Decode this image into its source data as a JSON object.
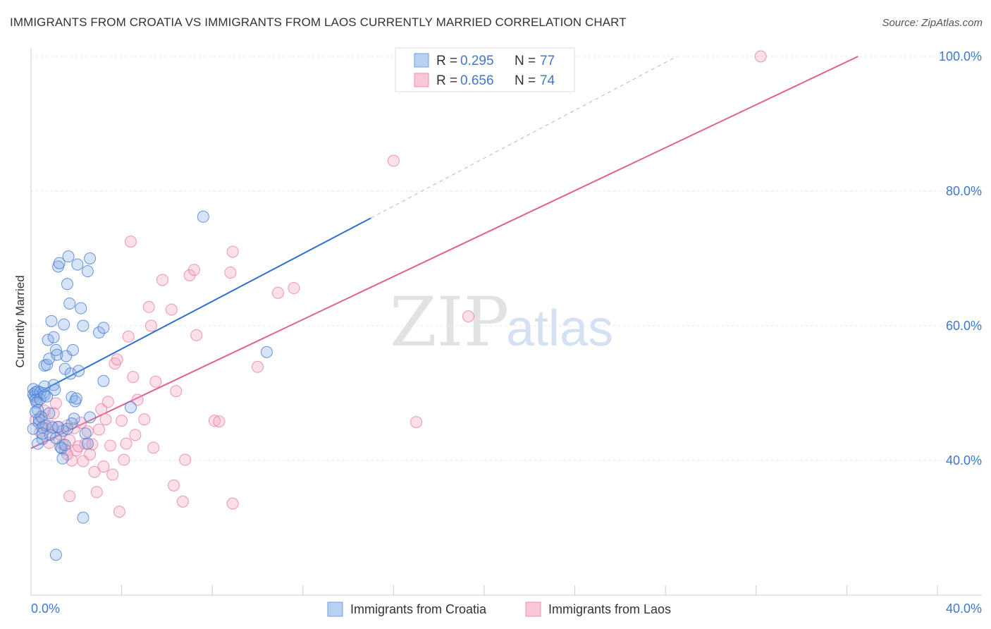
{
  "title": "IMMIGRANTS FROM CROATIA VS IMMIGRANTS FROM LAOS CURRENTLY MARRIED CORRELATION CHART",
  "source": "Source: ZipAtlas.com",
  "watermark": {
    "zip": "ZIP",
    "atlas": "atlas"
  },
  "colors": {
    "croatia": "#5a8fdc",
    "croatia_line": "#2d6fcc",
    "laos": "#f08cab",
    "laos_line": "#e0608c",
    "tick_text": "#3f78cc"
  },
  "chart_data": {
    "type": "scatter",
    "title": "IMMIGRANTS FROM CROATIA VS IMMIGRANTS FROM LAOS CURRENTLY MARRIED CORRELATION CHART",
    "xlabel": "",
    "ylabel": "Currently Married",
    "xlim": [
      0,
      40
    ],
    "ylim": [
      22,
      102
    ],
    "x_tick_labels": [
      "0.0%",
      "40.0%"
    ],
    "y_ticks": [
      40,
      60,
      80,
      100
    ],
    "y_tick_labels": [
      "40.0%",
      "60.0%",
      "80.0%",
      "100.0%"
    ],
    "grid": true,
    "legend_position": "top-center",
    "legend": [
      {
        "series": "Immigrants from Croatia",
        "r_label": "R =",
        "r_value": "0.295",
        "n_label": "N =",
        "n_value": "77"
      },
      {
        "series": "Immigrants from Laos",
        "r_label": "R =",
        "r_value": "0.656",
        "n_label": "N =",
        "n_value": "74"
      }
    ],
    "series": [
      {
        "name": "Immigrants from Croatia",
        "trend": {
          "x": [
            0.0,
            15.0
          ],
          "y": [
            49.5,
            76.0
          ],
          "extended_to": [
            28.5,
            100.0
          ]
        },
        "points": [
          [
            0.1,
            50.6
          ],
          [
            0.1,
            49.8
          ],
          [
            0.15,
            49.5
          ],
          [
            0.2,
            50.1
          ],
          [
            0.2,
            49.0
          ],
          [
            0.25,
            48.6
          ],
          [
            0.3,
            50.3
          ],
          [
            0.3,
            47.5
          ],
          [
            0.35,
            46.1
          ],
          [
            0.35,
            45.6
          ],
          [
            0.4,
            50.1
          ],
          [
            0.4,
            49.1
          ],
          [
            0.45,
            46.5
          ],
          [
            0.5,
            44.9
          ],
          [
            0.5,
            43.2
          ],
          [
            0.55,
            50.0
          ],
          [
            0.6,
            49.7
          ],
          [
            0.6,
            54.1
          ],
          [
            0.65,
            45.2
          ],
          [
            0.7,
            54.2
          ],
          [
            0.75,
            57.9
          ],
          [
            0.8,
            55.1
          ],
          [
            0.85,
            43.8
          ],
          [
            0.9,
            60.7
          ],
          [
            0.95,
            44.9
          ],
          [
            1.0,
            51.2
          ],
          [
            1.0,
            58.3
          ],
          [
            1.05,
            50.5
          ],
          [
            1.1,
            56.4
          ],
          [
            1.15,
            55.7
          ],
          [
            1.2,
            68.8
          ],
          [
            1.25,
            69.3
          ],
          [
            1.3,
            42.0
          ],
          [
            1.35,
            41.8
          ],
          [
            1.4,
            44.4
          ],
          [
            1.45,
            60.2
          ],
          [
            1.5,
            53.6
          ],
          [
            1.55,
            55.5
          ],
          [
            1.6,
            66.2
          ],
          [
            1.65,
            70.3
          ],
          [
            1.7,
            63.3
          ],
          [
            1.75,
            52.9
          ],
          [
            1.8,
            49.4
          ],
          [
            1.85,
            56.4
          ],
          [
            1.9,
            46.2
          ],
          [
            1.95,
            48.8
          ],
          [
            2.0,
            49.2
          ],
          [
            2.05,
            69.1
          ],
          [
            2.1,
            53.3
          ],
          [
            2.2,
            62.6
          ],
          [
            2.3,
            60.0
          ],
          [
            2.4,
            44.0
          ],
          [
            2.5,
            42.5
          ],
          [
            2.6,
            46.4
          ],
          [
            0.2,
            47.2
          ],
          [
            0.5,
            44.0
          ],
          [
            0.6,
            51.0
          ],
          [
            0.7,
            49.5
          ],
          [
            0.8,
            47.0
          ],
          [
            1.1,
            43.3
          ],
          [
            1.2,
            45.0
          ],
          [
            1.4,
            40.3
          ],
          [
            1.5,
            42.3
          ],
          [
            1.6,
            44.7
          ],
          [
            1.8,
            45.5
          ],
          [
            2.3,
            31.5
          ],
          [
            1.1,
            26.0
          ],
          [
            2.5,
            68.1
          ],
          [
            2.6,
            70.0
          ],
          [
            3.0,
            59.0
          ],
          [
            3.2,
            59.7
          ],
          [
            3.2,
            51.8
          ],
          [
            4.4,
            47.9
          ],
          [
            7.6,
            76.2
          ],
          [
            10.4,
            56.1
          ],
          [
            0.3,
            42.5
          ],
          [
            0.1,
            44.7
          ]
        ]
      },
      {
        "name": "Immigrants from Laos",
        "trend": {
          "x": [
            0.0,
            36.5
          ],
          "y": [
            41.8,
            100.0
          ]
        },
        "points": [
          [
            0.3,
            48.8
          ],
          [
            0.5,
            46.3
          ],
          [
            0.6,
            47.4
          ],
          [
            0.7,
            44.7
          ],
          [
            0.8,
            42.6
          ],
          [
            0.9,
            45.1
          ],
          [
            1.0,
            47.0
          ],
          [
            1.2,
            44.9
          ],
          [
            1.3,
            43.8
          ],
          [
            1.4,
            42.4
          ],
          [
            1.5,
            41.6
          ],
          [
            1.6,
            45.2
          ],
          [
            1.7,
            43.0
          ],
          [
            1.8,
            40.0
          ],
          [
            1.9,
            44.8
          ],
          [
            2.0,
            41.5
          ],
          [
            2.1,
            42.1
          ],
          [
            2.2,
            45.6
          ],
          [
            2.3,
            39.9
          ],
          [
            2.4,
            42.5
          ],
          [
            2.5,
            44.3
          ],
          [
            2.6,
            40.9
          ],
          [
            2.7,
            42.4
          ],
          [
            2.8,
            38.3
          ],
          [
            2.9,
            35.3
          ],
          [
            3.0,
            44.6
          ],
          [
            3.1,
            47.6
          ],
          [
            3.2,
            39.1
          ],
          [
            3.3,
            46.1
          ],
          [
            3.4,
            48.7
          ],
          [
            3.5,
            42.2
          ],
          [
            3.6,
            37.9
          ],
          [
            3.7,
            54.4
          ],
          [
            3.8,
            55.0
          ],
          [
            3.9,
            32.4
          ],
          [
            4.0,
            45.9
          ],
          [
            4.1,
            40.1
          ],
          [
            4.2,
            42.5
          ],
          [
            4.3,
            58.4
          ],
          [
            4.4,
            72.5
          ],
          [
            4.5,
            52.4
          ],
          [
            4.6,
            43.8
          ],
          [
            4.7,
            49.0
          ],
          [
            5.0,
            46.1
          ],
          [
            5.2,
            62.8
          ],
          [
            5.3,
            60.0
          ],
          [
            5.4,
            41.9
          ],
          [
            5.5,
            51.7
          ],
          [
            5.8,
            66.8
          ],
          [
            6.2,
            62.4
          ],
          [
            6.3,
            36.3
          ],
          [
            6.4,
            50.3
          ],
          [
            6.7,
            33.9
          ],
          [
            6.8,
            40.1
          ],
          [
            7.0,
            67.5
          ],
          [
            7.2,
            68.3
          ],
          [
            7.3,
            58.6
          ],
          [
            8.1,
            45.9
          ],
          [
            8.3,
            45.8
          ],
          [
            8.8,
            67.9
          ],
          [
            8.9,
            71.0
          ],
          [
            8.9,
            33.6
          ],
          [
            10.0,
            53.9
          ],
          [
            10.9,
            64.9
          ],
          [
            11.6,
            65.6
          ],
          [
            16.0,
            84.5
          ],
          [
            17.0,
            45.7
          ],
          [
            19.3,
            61.4
          ],
          [
            32.2,
            100.0
          ],
          [
            0.2,
            46.0
          ],
          [
            0.4,
            44.2
          ],
          [
            1.1,
            48.5
          ],
          [
            1.6,
            40.9
          ],
          [
            1.7,
            34.7
          ]
        ]
      }
    ]
  }
}
